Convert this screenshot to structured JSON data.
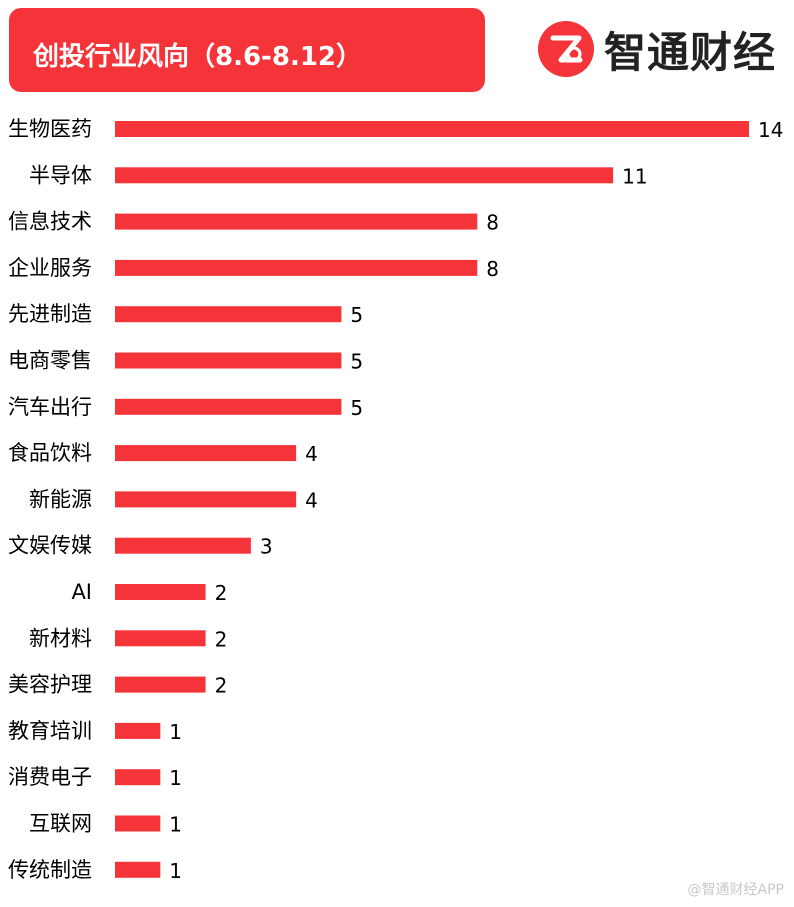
{
  "header": {
    "title": "创投行业风向（8.6-8.12）",
    "brand_name": "智通财经",
    "brand_icon": "zhitong-logo-icon"
  },
  "watermark": "@智通财经APP",
  "colors": {
    "accent": "#f5343a",
    "bar": "#f5343a",
    "text": "#000000"
  },
  "chart_data": {
    "type": "bar",
    "orientation": "horizontal",
    "title": "创投行业风向（8.6-8.12）",
    "xlabel": "",
    "ylabel": "",
    "grid": false,
    "xlim": [
      0,
      14
    ],
    "categories": [
      "生物医药",
      "半导体",
      "信息技术",
      "企业服务",
      "先进制造",
      "电商零售",
      "汽车出行",
      "食品饮料",
      "新能源",
      "文娱传媒",
      "AI",
      "新材料",
      "美容护理",
      "教育培训",
      "消费电子",
      "互联网",
      "传统制造"
    ],
    "values": [
      14,
      11,
      8,
      8,
      5,
      5,
      5,
      4,
      4,
      3,
      2,
      2,
      2,
      1,
      1,
      1,
      1
    ]
  }
}
